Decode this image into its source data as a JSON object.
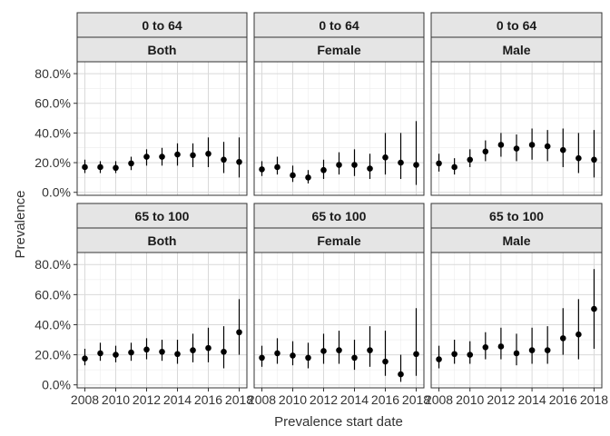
{
  "chart_data": {
    "type": "scatter",
    "subtype": "point-range facet grid",
    "xlabel": "Prevalence start date",
    "ylabel": "Prevalence",
    "x_ticks": [
      2008,
      2010,
      2012,
      2014,
      2016,
      2018
    ],
    "xlim": [
      2007.5,
      2018.5
    ],
    "y_ticks": [
      "0.0%",
      "20.0%",
      "40.0%",
      "60.0%",
      "80.0%"
    ],
    "y_tick_values": [
      0,
      20,
      40,
      60,
      80
    ],
    "ylim": [
      -2,
      88
    ],
    "grid": true,
    "colors": {
      "point": "#000000",
      "strip_fill": "#e5e5e5",
      "grid": "#d9d9d9"
    },
    "x": [
      2008,
      2009,
      2010,
      2011,
      2012,
      2013,
      2014,
      2015,
      2016,
      2017,
      2018
    ],
    "panels": [
      {
        "age": "0 to 64",
        "sex": "Both",
        "est": [
          17,
          17,
          16.5,
          19.5,
          24,
          24,
          25.5,
          25,
          26,
          22,
          20.5
        ],
        "lo": [
          13,
          13,
          13,
          15,
          18,
          18,
          18,
          17,
          17,
          13,
          10
        ],
        "hi": [
          22,
          21,
          21,
          24,
          29,
          30,
          33,
          33,
          37,
          34,
          37
        ]
      },
      {
        "age": "0 to 64",
        "sex": "Female",
        "est": [
          15.5,
          17,
          11.5,
          10,
          15,
          18.5,
          18.5,
          16,
          23.5,
          20,
          18.5
        ],
        "lo": [
          11,
          12,
          7,
          6,
          9,
          12,
          11,
          9,
          12,
          9,
          5
        ],
        "hi": [
          21,
          24,
          18,
          15,
          22,
          27,
          29,
          26,
          40,
          40,
          48
        ]
      },
      {
        "age": "0 to 64",
        "sex": "Male",
        "est": [
          19.5,
          17,
          22,
          27.5,
          32,
          29.5,
          32,
          31,
          28.5,
          23,
          22
        ],
        "lo": [
          14,
          12,
          17,
          21,
          24,
          21,
          22,
          21,
          17,
          13,
          10
        ],
        "hi": [
          26,
          23,
          29,
          35,
          40,
          39,
          43,
          42,
          43,
          40,
          42
        ]
      },
      {
        "age": "65 to 100",
        "sex": "Both",
        "est": [
          17.5,
          21,
          20,
          21.5,
          23.5,
          22,
          20.5,
          23,
          24.5,
          22,
          35
        ],
        "lo": [
          13,
          16,
          15,
          16,
          17,
          16,
          14,
          15,
          15,
          11,
          20
        ],
        "hi": [
          24,
          28,
          26,
          28,
          31,
          30,
          30,
          34,
          38,
          39,
          57
        ]
      },
      {
        "age": "65 to 100",
        "sex": "Female",
        "est": [
          18,
          21,
          19.5,
          18,
          22.5,
          23,
          18,
          23,
          15.5,
          7,
          20.5
        ],
        "lo": [
          12,
          14,
          13,
          11,
          14,
          14,
          10,
          12,
          6,
          2,
          6
        ],
        "hi": [
          26,
          31,
          29,
          28,
          34,
          36,
          30,
          39,
          36,
          20,
          51
        ]
      },
      {
        "age": "65 to 100",
        "sex": "Male",
        "est": [
          17,
          20.5,
          20,
          25,
          25.5,
          21,
          23,
          23,
          31,
          33.5,
          50.5
        ],
        "lo": [
          11,
          14,
          14,
          17,
          17,
          13,
          14,
          14,
          20,
          17,
          24
        ],
        "hi": [
          26,
          30,
          29,
          35,
          38,
          34,
          38,
          39,
          51,
          57,
          77
        ]
      }
    ]
  }
}
